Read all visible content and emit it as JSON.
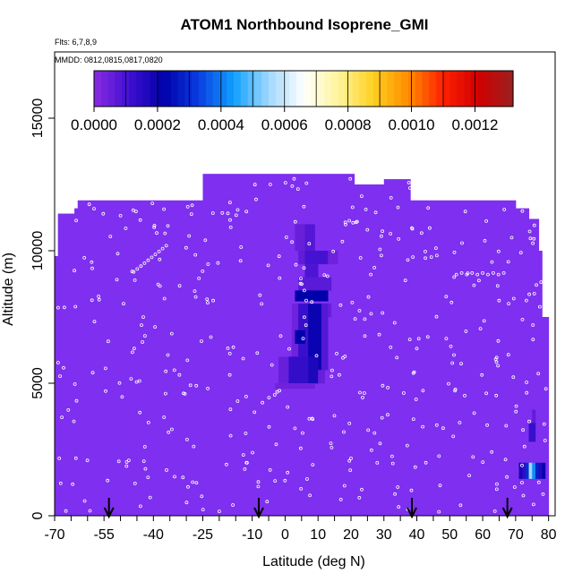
{
  "header": {
    "title": "ATOM1 Northbound Isoprene_GMI",
    "flights_note": "Flts: 6,7,8,9",
    "dates_note": "MMDD: 0812,0815,0817,0820"
  },
  "chart_data": {
    "type": "heatmap",
    "title": "ATOM1 Northbound Isoprene_GMI",
    "xlabel": "Latitude (deg N)",
    "ylabel": "Altitude (m)",
    "xlim": [
      -70,
      82
    ],
    "ylim": [
      0,
      17500
    ],
    "xticks": [
      -70,
      -55,
      -40,
      -25,
      -10,
      0,
      10,
      20,
      30,
      40,
      50,
      60,
      70,
      80
    ],
    "yticks": [
      0,
      5000,
      10000,
      15000
    ],
    "xtick_labels": [
      "-70",
      "-55",
      "-40",
      "-25",
      "-10",
      "0",
      "10",
      "20",
      "30",
      "40",
      "50",
      "60",
      "70",
      "80"
    ],
    "ytick_labels": [
      "0",
      "5000",
      "10000",
      "15000"
    ],
    "colorbar": {
      "range": [
        0,
        0.00132
      ],
      "ticks": [
        "0.0000",
        "0.0002",
        "0.0004",
        "0.0006",
        "0.0008",
        "0.0010",
        "0.0012"
      ],
      "tick_values": [
        0,
        0.0002,
        0.0004,
        0.0006,
        0.0008,
        0.001,
        0.0012
      ],
      "stops": [
        "#8a2be2",
        "#3f10d0",
        "#0000aa",
        "#0a3de0",
        "#10a0ff",
        "#9fd8ff",
        "#ffffff",
        "#fff49a",
        "#ffd020",
        "#ff8c00",
        "#ff2000",
        "#d00000",
        "#9b2020"
      ]
    },
    "background_value": 0,
    "background_color": "#7f2fef",
    "top_profile": [
      {
        "lat_range": [
          -70,
          -69
        ],
        "top": 9800
      },
      {
        "lat_range": [
          -69,
          -64
        ],
        "top": 11400
      },
      {
        "lat_range": [
          -64,
          -63
        ],
        "top": 11600
      },
      {
        "lat_range": [
          -63,
          -45
        ],
        "top": 11900
      },
      {
        "lat_range": [
          -45,
          -40
        ],
        "top": 11900
      },
      {
        "lat_range": [
          -40,
          -25
        ],
        "top": 11900
      },
      {
        "lat_range": [
          -25,
          21
        ],
        "top": 12900
      },
      {
        "lat_range": [
          21,
          30
        ],
        "top": 12500
      },
      {
        "lat_range": [
          30,
          38
        ],
        "top": 12700
      },
      {
        "lat_range": [
          38,
          70
        ],
        "top": 11900
      },
      {
        "lat_range": [
          70,
          74
        ],
        "top": 11600
      },
      {
        "lat_range": [
          74,
          77
        ],
        "top": 11200
      },
      {
        "lat_range": [
          77,
          78
        ],
        "top": 10000
      },
      {
        "lat_range": [
          78,
          80
        ],
        "top": 7500
      }
    ],
    "cells": [
      {
        "lat_range": [
          3,
          6
        ],
        "alt_range": [
          10000,
          11000
        ],
        "value": 5e-05
      },
      {
        "lat_range": [
          6,
          9
        ],
        "alt_range": [
          10000,
          11000
        ],
        "value": 8e-05
      },
      {
        "lat_range": [
          4,
          6
        ],
        "alt_range": [
          9500,
          10000
        ],
        "value": 6e-05
      },
      {
        "lat_range": [
          6,
          13
        ],
        "alt_range": [
          9500,
          10000
        ],
        "value": 0.0001
      },
      {
        "lat_range": [
          13,
          16
        ],
        "alt_range": [
          9500,
          10000
        ],
        "value": 4e-05
      },
      {
        "lat_range": [
          6,
          10
        ],
        "alt_range": [
          9000,
          9500
        ],
        "value": 9e-05
      },
      {
        "lat_range": [
          4,
          14
        ],
        "alt_range": [
          8500,
          9000
        ],
        "value": 7e-05
      },
      {
        "lat_range": [
          3,
          13
        ],
        "alt_range": [
          8100,
          8500
        ],
        "value": 0.00022
      },
      {
        "lat_range": [
          3,
          14
        ],
        "alt_range": [
          7500,
          8000
        ],
        "value": 5e-05
      },
      {
        "lat_range": [
          2,
          4
        ],
        "alt_range": [
          6000,
          8000
        ],
        "value": 4e-05
      },
      {
        "lat_range": [
          4,
          7
        ],
        "alt_range": [
          6000,
          8000
        ],
        "value": 0.00012
      },
      {
        "lat_range": [
          7,
          11
        ],
        "alt_range": [
          5500,
          8000
        ],
        "value": 0.0002
      },
      {
        "lat_range": [
          11,
          13
        ],
        "alt_range": [
          5500,
          8000
        ],
        "value": 8e-05
      },
      {
        "lat_range": [
          1,
          7
        ],
        "alt_range": [
          5000,
          6000
        ],
        "value": 0.00013
      },
      {
        "lat_range": [
          7,
          10
        ],
        "alt_range": [
          5000,
          6000
        ],
        "value": 0.00017
      },
      {
        "lat_range": [
          -2,
          1
        ],
        "alt_range": [
          5000,
          6000
        ],
        "value": 5e-05
      },
      {
        "lat_range": [
          10,
          12
        ],
        "alt_range": [
          5000,
          5500
        ],
        "value": 5e-05
      },
      {
        "lat_range": [
          -3,
          9
        ],
        "alt_range": [
          4800,
          5000
        ],
        "value": 4e-05
      },
      {
        "lat_range": [
          3,
          6
        ],
        "alt_range": [
          6500,
          7000
        ],
        "value": 0.00022
      },
      {
        "lat_range": [
          75,
          76
        ],
        "alt_range": [
          3500,
          4000
        ],
        "value": 6e-05
      },
      {
        "lat_range": [
          74,
          76
        ],
        "alt_range": [
          2800,
          3500
        ],
        "value": 0.00012
      },
      {
        "lat_range": [
          71,
          72
        ],
        "alt_range": [
          1400,
          2000
        ],
        "value": 0.00018
      },
      {
        "lat_range": [
          72,
          73
        ],
        "alt_range": [
          1400,
          2000
        ],
        "value": 0.00014
      },
      {
        "lat_range": [
          73,
          74
        ],
        "alt_range": [
          1400,
          2000
        ],
        "value": 0.0003
      },
      {
        "lat_range": [
          74,
          75
        ],
        "alt_range": [
          1400,
          2000
        ],
        "value": 0.00055
      },
      {
        "lat_range": [
          75,
          76
        ],
        "alt_range": [
          1400,
          2000
        ],
        "value": 0.00042
      },
      {
        "lat_range": [
          76,
          77
        ],
        "alt_range": [
          1400,
          2000
        ],
        "value": 0.00028
      },
      {
        "lat_range": [
          77,
          78
        ],
        "alt_range": [
          1400,
          2000
        ],
        "value": 0.00016
      },
      {
        "lat_range": [
          78,
          79
        ],
        "alt_range": [
          1400,
          2000
        ],
        "value": 0.0002
      }
    ],
    "sample_points_note": "white open-circle markers scattered across the curtain",
    "marker_arrows_lat": [
      -53.5,
      -8,
      38.5,
      67.5
    ]
  }
}
